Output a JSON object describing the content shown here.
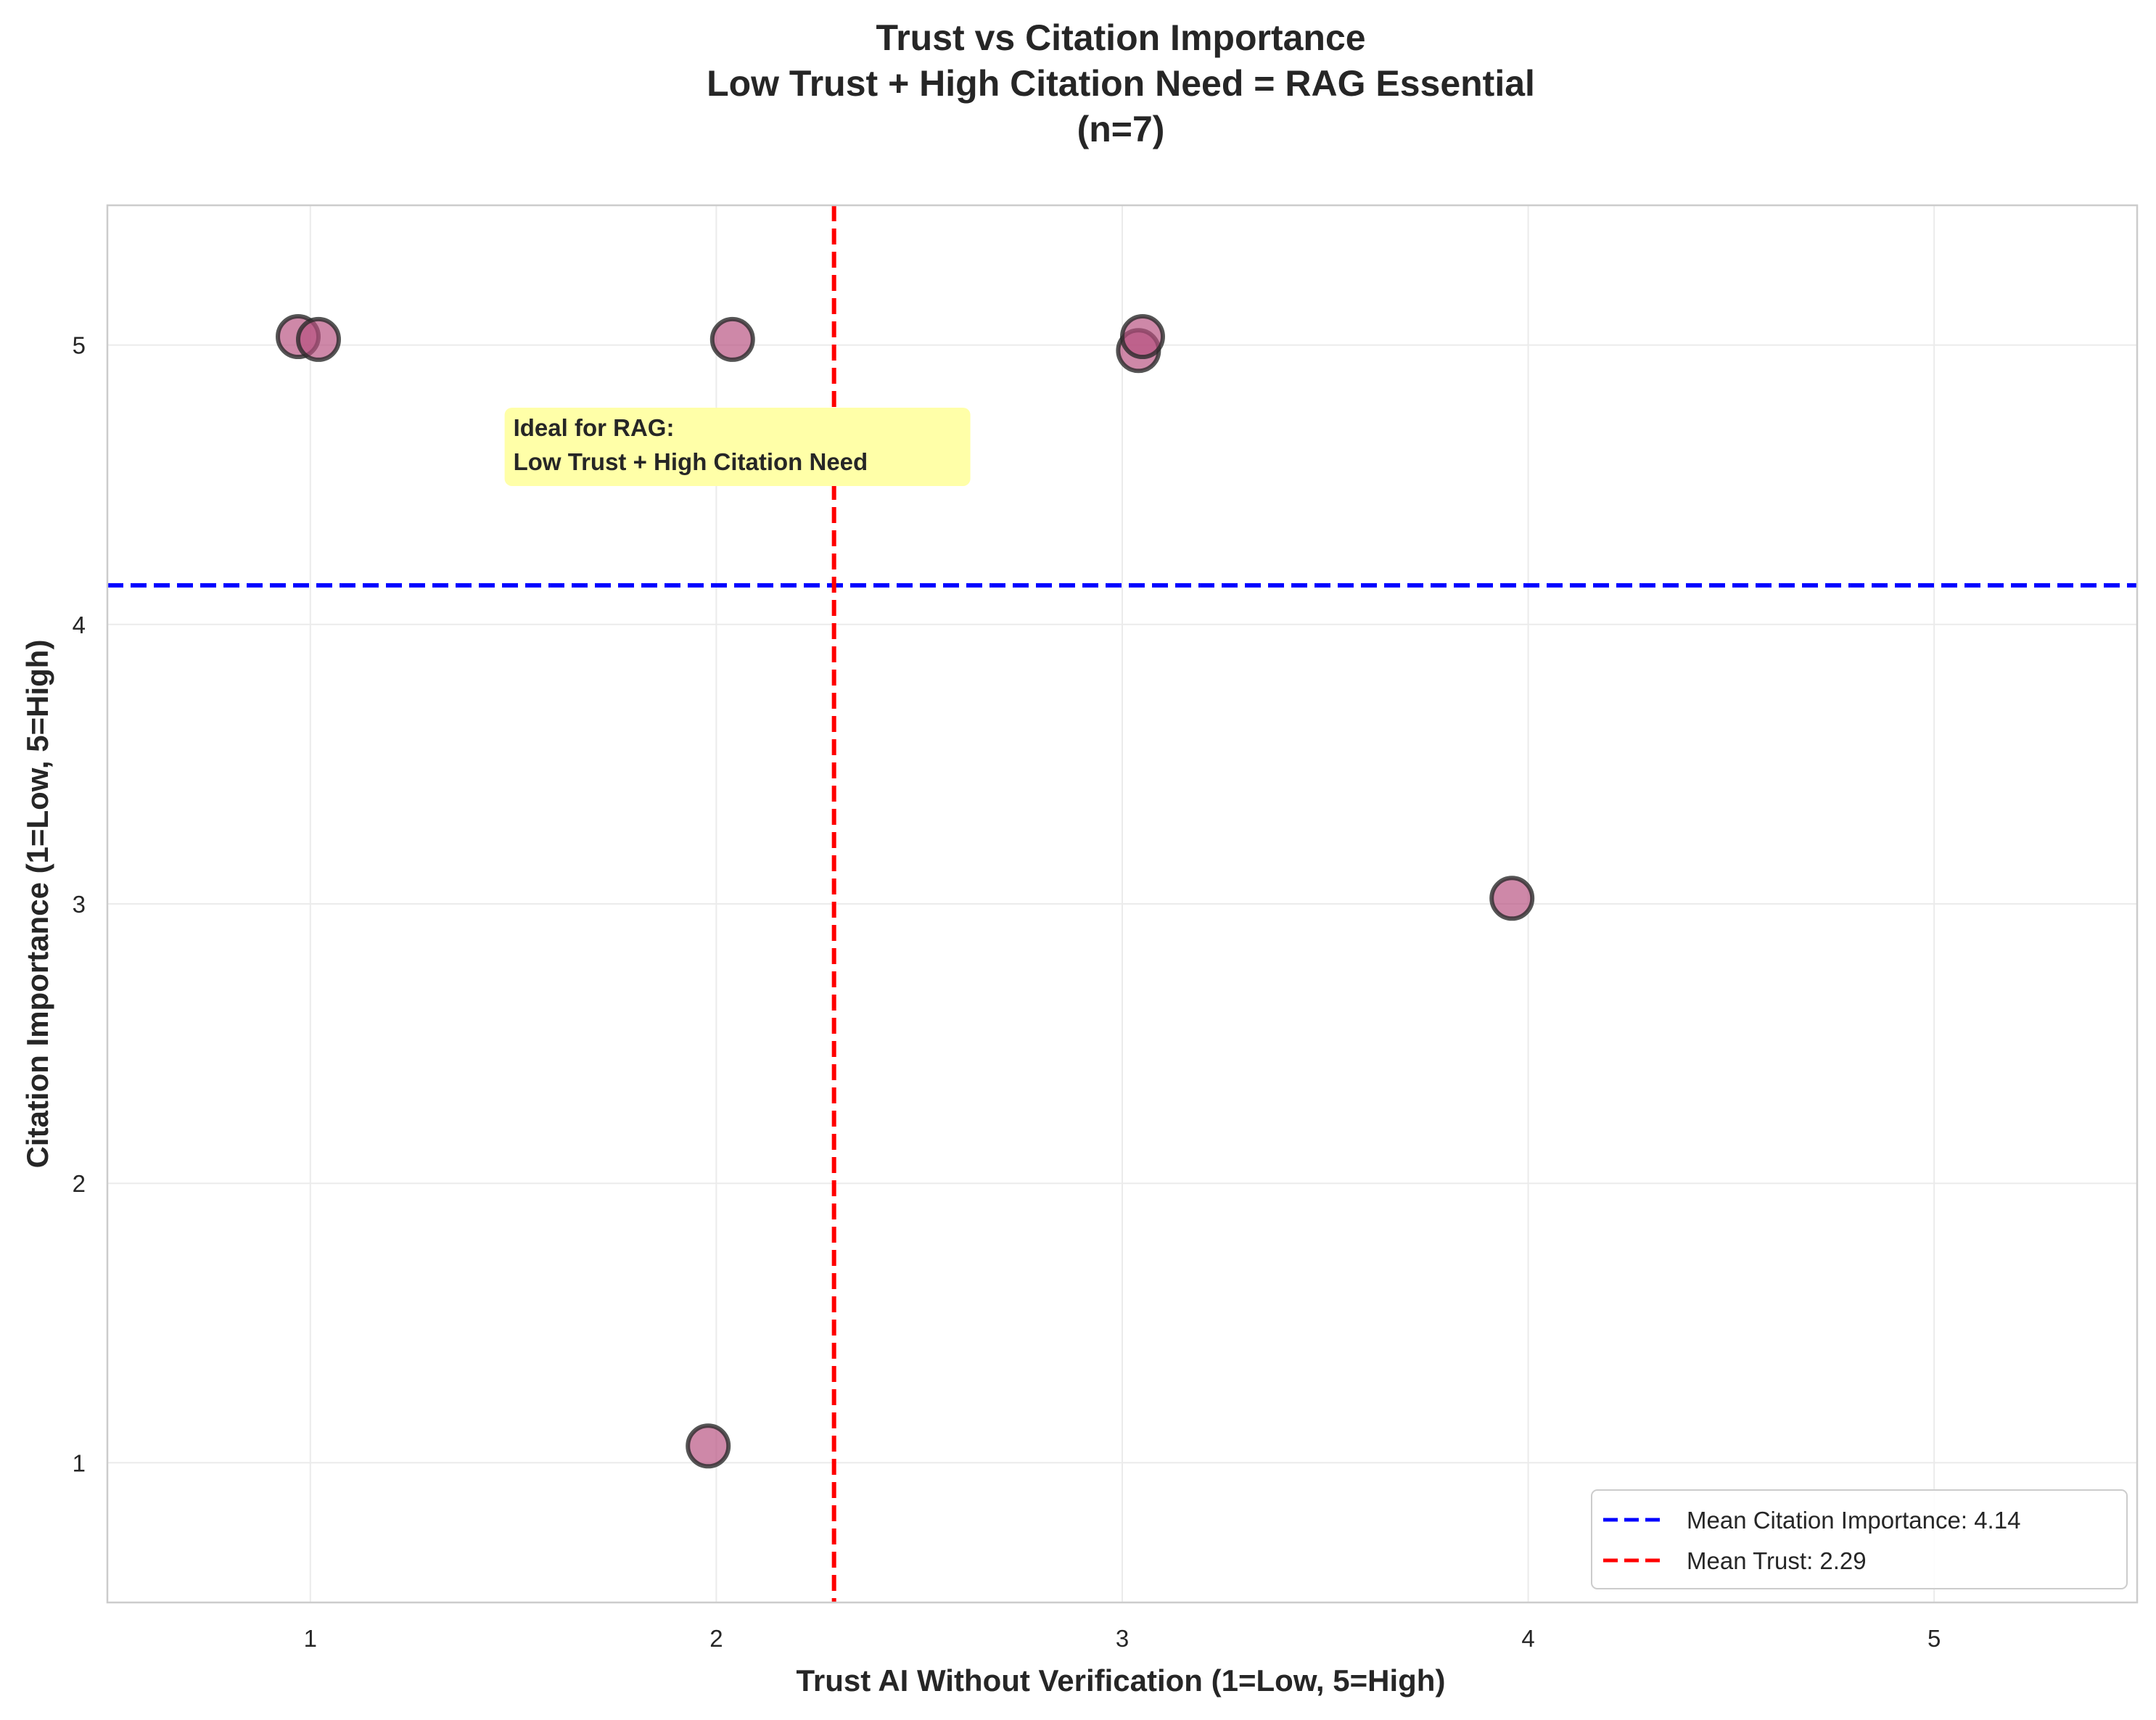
{
  "chart_data": {
    "type": "scatter",
    "title": [
      "Trust vs Citation Importance",
      "Low Trust + High Citation Need = RAG Essential",
      "(n=7)"
    ],
    "xlabel": "Trust AI Without Verification (1=Low, 5=High)",
    "ylabel": "Citation Importance (1=Low, 5=High)",
    "xlim": [
      0.5,
      5.5
    ],
    "ylim": [
      0.5,
      5.5
    ],
    "xticks": [
      "1",
      "2",
      "3",
      "4",
      "5"
    ],
    "yticks": [
      "1",
      "2",
      "3",
      "4",
      "5"
    ],
    "grid": true,
    "points": [
      {
        "x": 0.97,
        "y": 5.03
      },
      {
        "x": 1.02,
        "y": 5.02
      },
      {
        "x": 2.04,
        "y": 5.02
      },
      {
        "x": 3.04,
        "y": 4.98
      },
      {
        "x": 3.05,
        "y": 5.03
      },
      {
        "x": 3.96,
        "y": 3.02
      },
      {
        "x": 1.98,
        "y": 1.06
      }
    ],
    "point_color": "#b7507f",
    "point_edge_color": "#2b2b2b",
    "mean_lines": [
      {
        "orientation": "horizontal",
        "value": 4.14,
        "color": "#0000ff",
        "label": "Mean Citation Importance: 4.14"
      },
      {
        "orientation": "vertical",
        "value": 2.29,
        "color": "#ff0000",
        "label": "Mean Trust: 2.29"
      }
    ],
    "annotation": {
      "lines": [
        "Ideal for RAG:",
        "Low Trust + High Citation Need"
      ],
      "x": 1.5,
      "y": 4.62,
      "background": "#ffffa8"
    },
    "legend_position": "lower-right"
  }
}
